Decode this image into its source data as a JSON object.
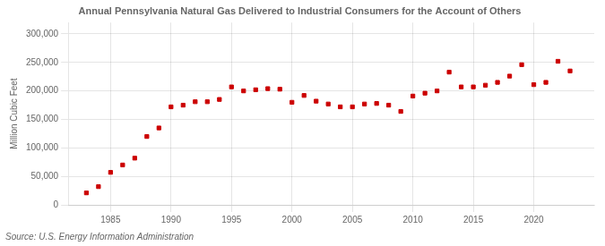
{
  "chart_data": {
    "type": "scatter",
    "title": "Annual Pennsylvania Natural Gas Delivered to Industrial Consumers for the Account of Others",
    "ylabel": "Million Cubic Feet",
    "annotations": [
      "Source: U.S. Energy Information Administration"
    ],
    "x": [
      1983,
      1984,
      1985,
      1986,
      1987,
      1988,
      1989,
      1990,
      1991,
      1992,
      1993,
      1994,
      1995,
      1996,
      1997,
      1998,
      1999,
      2000,
      2001,
      2002,
      2003,
      2004,
      2005,
      2006,
      2007,
      2008,
      2009,
      2010,
      2011,
      2012,
      2013,
      2014,
      2015,
      2016,
      2017,
      2018,
      2019,
      2020,
      2021,
      2022,
      2023
    ],
    "values": [
      21000,
      32000,
      57000,
      70000,
      82000,
      120000,
      135000,
      172000,
      175000,
      181000,
      181000,
      185000,
      207000,
      200000,
      202000,
      204000,
      203000,
      180000,
      192000,
      182000,
      177000,
      172000,
      172000,
      177000,
      178000,
      175000,
      164000,
      191000,
      196000,
      200000,
      233000,
      207000,
      207000,
      210000,
      215000,
      226000,
      246000,
      211000,
      215000,
      252000,
      235000
    ],
    "color": "#CC0000",
    "marker": "square",
    "xlim": [
      1981.5,
      2025
    ],
    "xticks": [
      1985,
      1990,
      1995,
      2000,
      2005,
      2010,
      2015,
      2020
    ],
    "ylim": [
      0,
      320000
    ],
    "yticks": [
      0,
      {
        "value": 50000,
        "label": "50,000"
      },
      {
        "value": 100000,
        "label": "100,000"
      },
      {
        "value": 150000,
        "label": "150,000"
      },
      {
        "value": 200000,
        "label": "200,000"
      },
      {
        "value": 250000,
        "label": "250,000"
      },
      {
        "value": 300000,
        "label": "300,000"
      }
    ],
    "grid": true
  }
}
